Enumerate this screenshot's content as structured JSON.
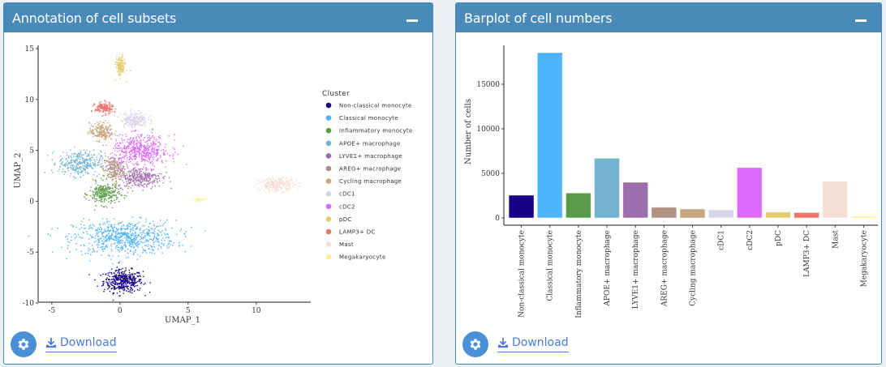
{
  "panels": {
    "left": {
      "title": "Annotation of cell subsets",
      "download_label": "Download"
    },
    "right": {
      "title": "Barplot of cell numbers",
      "download_label": "Download"
    }
  },
  "chart_data": [
    {
      "type": "scatter",
      "title": "",
      "xlabel": "UMAP_1",
      "ylabel": "UMAP_2",
      "xlim": [
        -6,
        14
      ],
      "ylim": [
        -10.2,
        15.5
      ],
      "xticks": [
        "-5",
        "0",
        "5",
        "10"
      ],
      "xtick_values": [
        -5,
        0,
        5,
        10
      ],
      "yticks": [
        "-10",
        "-5",
        "0",
        "5",
        "10",
        "15"
      ],
      "ytick_values": [
        -10,
        -5,
        0,
        5,
        10,
        15
      ],
      "grid": false,
      "legend": {
        "title": "Cluster",
        "placement": "right",
        "entries": [
          {
            "name": "Non-classical monocyte",
            "color": "#160087"
          },
          {
            "name": "Classical monocyte",
            "color": "#4db3fa"
          },
          {
            "name": "Inflammatory monocyte",
            "color": "#5a9a48"
          },
          {
            "name": "APOE+ macrophage",
            "color": "#73b3cf"
          },
          {
            "name": "LYVE1+ macrophage",
            "color": "#9c6eab"
          },
          {
            "name": "AREG+ macrophage",
            "color": "#b09280"
          },
          {
            "name": "Cycling macrophage",
            "color": "#c8a67e"
          },
          {
            "name": "cDC1",
            "color": "#d8d4ec"
          },
          {
            "name": "cDC2",
            "color": "#dc6afc"
          },
          {
            "name": "pDC",
            "color": "#e3cd6a"
          },
          {
            "name": "LAMP3+ DC",
            "color": "#ec766c"
          },
          {
            "name": "Mast",
            "color": "#f5ded6"
          },
          {
            "name": "Megakaryocyte",
            "color": "#faf19a"
          }
        ]
      },
      "clusters": [
        {
          "name": "Non-classical monocyte",
          "center": [
            0.2,
            -7.8
          ],
          "spread": [
            1.3,
            1.0
          ],
          "n": 420
        },
        {
          "name": "Classical monocyte",
          "center": [
            0.3,
            -3.5
          ],
          "spread": [
            3.4,
            1.5
          ],
          "n": 700
        },
        {
          "name": "Inflammatory monocyte",
          "center": [
            -1.2,
            0.8
          ],
          "spread": [
            1.0,
            1.0
          ],
          "n": 260
        },
        {
          "name": "APOE+ macrophage",
          "center": [
            -3.0,
            3.8
          ],
          "spread": [
            1.4,
            1.1
          ],
          "n": 320
        },
        {
          "name": "LYVE1+ macrophage",
          "center": [
            1.4,
            2.4
          ],
          "spread": [
            1.5,
            0.9
          ],
          "n": 300
        },
        {
          "name": "AREG+ macrophage",
          "center": [
            -0.5,
            3.2
          ],
          "spread": [
            0.7,
            1.2
          ],
          "n": 220
        },
        {
          "name": "Cycling macrophage",
          "center": [
            -1.4,
            6.9
          ],
          "spread": [
            0.8,
            0.8
          ],
          "n": 200
        },
        {
          "name": "cDC1",
          "center": [
            1.0,
            8.1
          ],
          "spread": [
            0.9,
            0.7
          ],
          "n": 220
        },
        {
          "name": "cDC2",
          "center": [
            1.5,
            5.0
          ],
          "spread": [
            1.9,
            1.4
          ],
          "n": 520
        },
        {
          "name": "pDC",
          "center": [
            0.0,
            13.3
          ],
          "spread": [
            0.3,
            0.9
          ],
          "n": 150
        },
        {
          "name": "LAMP3+ DC",
          "center": [
            -1.2,
            9.2
          ],
          "spread": [
            0.6,
            0.5
          ],
          "n": 180
        },
        {
          "name": "Mast",
          "center": [
            11.5,
            1.7
          ],
          "spread": [
            1.2,
            0.6
          ],
          "n": 260
        },
        {
          "name": "Megakaryocyte",
          "center": [
            5.8,
            0.2
          ],
          "spread": [
            0.4,
            0.1
          ],
          "n": 40
        }
      ]
    },
    {
      "type": "bar",
      "title": "",
      "xlabel": "",
      "ylabel": "Number of cells",
      "ylim": [
        0,
        19000
      ],
      "yticks": [
        "0",
        "5000",
        "10000",
        "15000"
      ],
      "ytick_values": [
        0,
        5000,
        10000,
        15000
      ],
      "grid": false,
      "categories": [
        "Non-classical monocyte",
        "Classical monocyte",
        "Inflammatory monocyte",
        "APOE+ macrophage",
        "LYVE1+ macrophage",
        "AREG+ macrophage",
        "Cycling macrophage",
        "cDC1",
        "cDC2",
        "pDC",
        "LAMP3+ DC",
        "Mast",
        "Megakaryocyte"
      ],
      "values": [
        2550,
        18550,
        2800,
        6700,
        4000,
        1200,
        1000,
        900,
        5650,
        650,
        600,
        4100,
        200
      ],
      "colors": [
        "#160087",
        "#4db3fa",
        "#5a9a48",
        "#73b3cf",
        "#9c6eab",
        "#b09280",
        "#c8a67e",
        "#d8d4ec",
        "#dc6afc",
        "#e3cd6a",
        "#ec766c",
        "#f5ded6",
        "#faf19a"
      ]
    }
  ]
}
